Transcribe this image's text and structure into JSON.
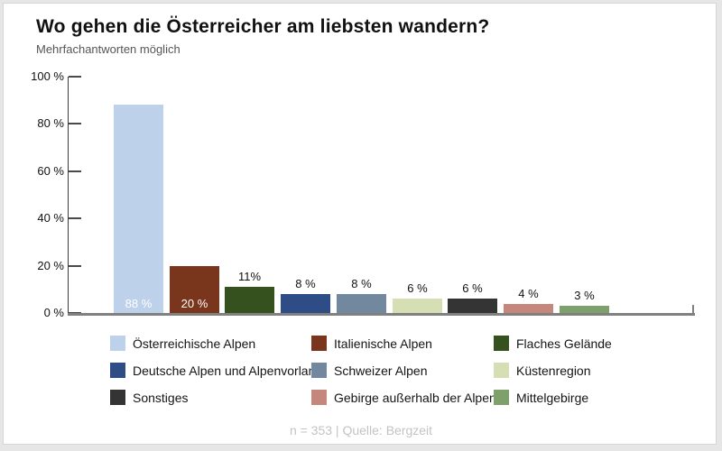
{
  "chart_data": {
    "type": "bar",
    "title": "Wo gehen die Österreicher am liebsten wandern?",
    "subtitle": "Mehrfachantworten möglich",
    "categories": [
      "Österreichische Alpen",
      "Italienische Alpen",
      "Flaches Gelände",
      "Deutsche Alpen und Alpenvorland",
      "Schweizer Alpen",
      "Küstenregion",
      "Sonstiges",
      "Gebirge außerhalb der Alpen",
      "Mittelgebirge"
    ],
    "values": [
      88,
      20,
      11,
      8,
      8,
      6,
      6,
      4,
      3
    ],
    "value_labels": [
      "88 %",
      "20 %",
      "11%",
      "8 %",
      "8 %",
      "6 %",
      "6 %",
      "4 %",
      "3 %"
    ],
    "label_inside": [
      true,
      true,
      false,
      false,
      false,
      false,
      false,
      false,
      false
    ],
    "colors": [
      "#bdd1ea",
      "#7a351d",
      "#35511e",
      "#2e4c85",
      "#71889f",
      "#d6deb4",
      "#343434",
      "#c5877c",
      "#7ea06b"
    ],
    "xlabel": "",
    "ylabel": "",
    "ylim": [
      0,
      100
    ],
    "yticks": [
      0,
      20,
      40,
      60,
      80,
      100
    ],
    "ytick_labels": [
      "0 %",
      "20 %",
      "40 %",
      "60 %",
      "80 %",
      "100 %"
    ],
    "grid": false,
    "legend_position": "bottom",
    "note": "n = 353 | Quelle: Bergzeit"
  }
}
